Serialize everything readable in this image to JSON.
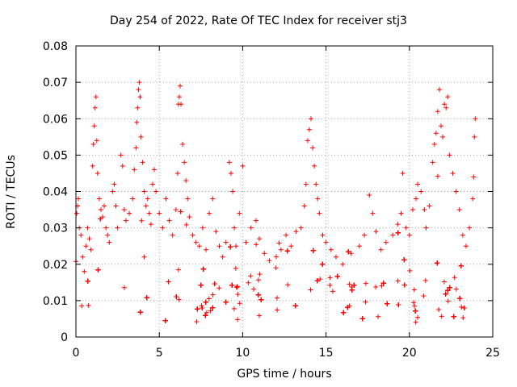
{
  "chart_data": {
    "type": "scatter",
    "title": "Day 254 of 2022, Rate Of TEC Index for receiver stj3",
    "xlabel": "GPS time / hours",
    "ylabel": "ROTI / TECUs",
    "xlim": [
      0,
      25
    ],
    "ylim": [
      0,
      0.08
    ],
    "x_ticks": [
      0,
      5,
      10,
      15,
      20,
      25
    ],
    "y_ticks": [
      0,
      0.01,
      0.02,
      0.03,
      0.04,
      0.05,
      0.06,
      0.07,
      0.08
    ],
    "x_tick_labels": [
      "0",
      "5",
      "10",
      "15",
      "20",
      "25"
    ],
    "y_tick_labels": [
      "0",
      "0.01",
      "0.02",
      "0.03",
      "0.04",
      "0.05",
      "0.06",
      "0.07",
      "0.08"
    ],
    "grid": true,
    "marker": "+",
    "color": "#ff0000",
    "series": [
      {
        "name": "ROTI",
        "points": [
          [
            0.05,
            0.034
          ],
          [
            0.1,
            0.036
          ],
          [
            0.15,
            0.038
          ],
          [
            0.2,
            0.03
          ],
          [
            0.3,
            0.028
          ],
          [
            0.4,
            0.022
          ],
          [
            0.5,
            0.018
          ],
          [
            0.6,
            0.025
          ],
          [
            0.7,
            0.03
          ],
          [
            0.8,
            0.027
          ],
          [
            0.9,
            0.024
          ],
          [
            1.0,
            0.047
          ],
          [
            1.05,
            0.053
          ],
          [
            1.1,
            0.058
          ],
          [
            1.15,
            0.063
          ],
          [
            1.2,
            0.066
          ],
          [
            1.25,
            0.054
          ],
          [
            1.3,
            0.045
          ],
          [
            1.4,
            0.038
          ],
          [
            1.5,
            0.035
          ],
          [
            1.6,
            0.033
          ],
          [
            1.7,
            0.036
          ],
          [
            1.8,
            0.03
          ],
          [
            1.9,
            0.028
          ],
          [
            2.0,
            0.026
          ],
          [
            2.2,
            0.04
          ],
          [
            2.3,
            0.042
          ],
          [
            2.4,
            0.036
          ],
          [
            2.5,
            0.03
          ],
          [
            2.7,
            0.05
          ],
          [
            2.8,
            0.047
          ],
          [
            2.9,
            0.035
          ],
          [
            3.0,
            0.032
          ],
          [
            3.2,
            0.034
          ],
          [
            3.4,
            0.038
          ],
          [
            3.5,
            0.046
          ],
          [
            3.6,
            0.052
          ],
          [
            3.65,
            0.059
          ],
          [
            3.7,
            0.063
          ],
          [
            3.75,
            0.068
          ],
          [
            3.8,
            0.07
          ],
          [
            3.85,
            0.066
          ],
          [
            3.9,
            0.055
          ],
          [
            4.0,
            0.048
          ],
          [
            4.1,
            0.04
          ],
          [
            4.2,
            0.036
          ],
          [
            4.3,
            0.038
          ],
          [
            4.4,
            0.034
          ],
          [
            4.5,
            0.031
          ],
          [
            4.6,
            0.042
          ],
          [
            4.7,
            0.046
          ],
          [
            4.8,
            0.04
          ],
          [
            5.0,
            0.034
          ],
          [
            5.2,
            0.03
          ],
          [
            5.4,
            0.038
          ],
          [
            5.6,
            0.032
          ],
          [
            5.8,
            0.028
          ],
          [
            6.0,
            0.035
          ],
          [
            6.1,
            0.045
          ],
          [
            6.15,
            0.064
          ],
          [
            6.2,
            0.066
          ],
          [
            6.25,
            0.069
          ],
          [
            6.3,
            0.064
          ],
          [
            6.4,
            0.053
          ],
          [
            6.5,
            0.048
          ],
          [
            6.6,
            0.043
          ],
          [
            6.7,
            0.038
          ],
          [
            6.8,
            0.033
          ],
          [
            7.0,
            0.028
          ],
          [
            7.2,
            0.026
          ],
          [
            7.4,
            0.025
          ],
          [
            7.6,
            0.03
          ],
          [
            7.8,
            0.024
          ],
          [
            8.0,
            0.034
          ],
          [
            8.2,
            0.038
          ],
          [
            8.4,
            0.029
          ],
          [
            8.6,
            0.025
          ],
          [
            8.8,
            0.022
          ],
          [
            9.0,
            0.026
          ],
          [
            9.2,
            0.048
          ],
          [
            9.3,
            0.045
          ],
          [
            9.4,
            0.04
          ],
          [
            9.5,
            0.03
          ],
          [
            9.6,
            0.025
          ],
          [
            9.8,
            0.034
          ],
          [
            10.0,
            0.047
          ],
          [
            10.2,
            0.026
          ],
          [
            10.5,
            0.03
          ],
          [
            10.8,
            0.032
          ],
          [
            11.0,
            0.027
          ],
          [
            11.3,
            0.023
          ],
          [
            11.6,
            0.021
          ],
          [
            12.0,
            0.019
          ],
          [
            12.3,
            0.024
          ],
          [
            12.6,
            0.028
          ],
          [
            12.9,
            0.025
          ],
          [
            13.2,
            0.029
          ],
          [
            13.5,
            0.03
          ],
          [
            13.7,
            0.036
          ],
          [
            13.8,
            0.042
          ],
          [
            13.9,
            0.054
          ],
          [
            14.0,
            0.057
          ],
          [
            14.1,
            0.06
          ],
          [
            14.2,
            0.052
          ],
          [
            14.3,
            0.047
          ],
          [
            14.4,
            0.042
          ],
          [
            14.5,
            0.038
          ],
          [
            14.6,
            0.034
          ],
          [
            14.8,
            0.028
          ],
          [
            15.0,
            0.026
          ],
          [
            15.3,
            0.024
          ],
          [
            15.6,
            0.022
          ],
          [
            16.0,
            0.02
          ],
          [
            16.5,
            0.023
          ],
          [
            17.0,
            0.025
          ],
          [
            17.3,
            0.028
          ],
          [
            17.6,
            0.039
          ],
          [
            17.8,
            0.034
          ],
          [
            18.0,
            0.029
          ],
          [
            18.3,
            0.024
          ],
          [
            18.6,
            0.026
          ],
          [
            19.0,
            0.028
          ],
          [
            19.3,
            0.031
          ],
          [
            19.5,
            0.034
          ],
          [
            19.6,
            0.045
          ],
          [
            19.8,
            0.03
          ],
          [
            20.0,
            0.028
          ],
          [
            20.2,
            0.035
          ],
          [
            20.4,
            0.038
          ],
          [
            20.5,
            0.042
          ],
          [
            20.7,
            0.04
          ],
          [
            20.9,
            0.035
          ],
          [
            21.0,
            0.03
          ],
          [
            21.2,
            0.036
          ],
          [
            21.4,
            0.048
          ],
          [
            21.5,
            0.053
          ],
          [
            21.6,
            0.056
          ],
          [
            21.7,
            0.062
          ],
          [
            21.8,
            0.068
          ],
          [
            21.9,
            0.058
          ],
          [
            22.0,
            0.055
          ],
          [
            22.1,
            0.064
          ],
          [
            22.2,
            0.063
          ],
          [
            22.3,
            0.066
          ],
          [
            22.4,
            0.05
          ],
          [
            22.6,
            0.045
          ],
          [
            22.8,
            0.04
          ],
          [
            23.0,
            0.035
          ],
          [
            23.2,
            0.028
          ],
          [
            23.4,
            0.025
          ],
          [
            23.6,
            0.03
          ],
          [
            23.8,
            0.038
          ],
          [
            23.85,
            0.044
          ],
          [
            23.9,
            0.055
          ],
          [
            23.95,
            0.06
          ]
        ]
      }
    ]
  }
}
